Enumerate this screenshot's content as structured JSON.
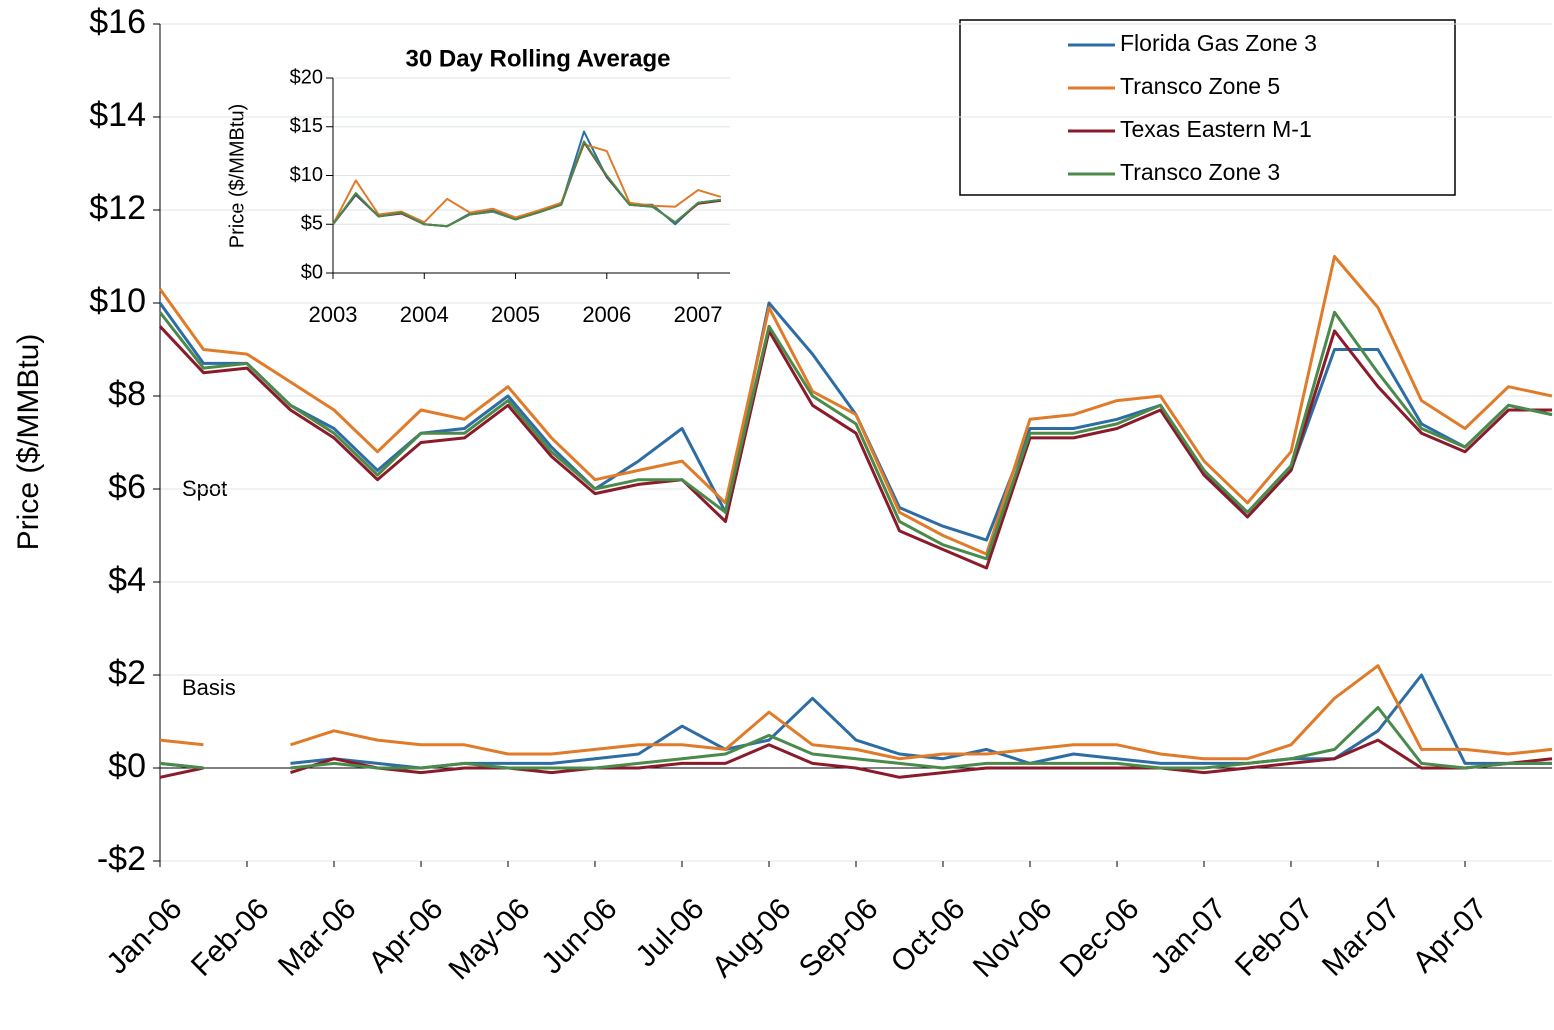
{
  "chart_data": [
    {
      "type": "line",
      "y_label": "Price ($/MMBtu)",
      "annotations": [
        "Spot",
        "Basis"
      ],
      "x": [
        0,
        0.5,
        1,
        1.5,
        2,
        2.5,
        3,
        3.5,
        4,
        4.5,
        5,
        5.5,
        6,
        6.5,
        7,
        7.5,
        8,
        8.5,
        9,
        9.5,
        10,
        10.5,
        11,
        11.5,
        12,
        12.5,
        13,
        13.5,
        14,
        14.5,
        15,
        15.5,
        16
      ],
      "xlim": [
        0,
        16
      ],
      "xticks": [
        {
          "value": 0,
          "label": "Jan-06"
        },
        {
          "value": 1,
          "label": "Feb-06"
        },
        {
          "value": 2,
          "label": "Mar-06"
        },
        {
          "value": 3,
          "label": "Apr-06"
        },
        {
          "value": 4,
          "label": "May-06"
        },
        {
          "value": 5,
          "label": "Jun-06"
        },
        {
          "value": 6,
          "label": "Jul-06"
        },
        {
          "value": 7,
          "label": "Aug-06"
        },
        {
          "value": 8,
          "label": "Sep-06"
        },
        {
          "value": 9,
          "label": "Oct-06"
        },
        {
          "value": 10,
          "label": "Nov-06"
        },
        {
          "value": 11,
          "label": "Dec-06"
        },
        {
          "value": 12,
          "label": "Jan-07"
        },
        {
          "value": 13,
          "label": "Feb-07"
        },
        {
          "value": 14,
          "label": "Mar-07"
        },
        {
          "value": 15,
          "label": "Apr-07"
        }
      ],
      "ylim": [
        -2,
        16
      ],
      "yticks": [
        {
          "value": -2,
          "label": "-$2"
        },
        {
          "value": 0,
          "label": "$0"
        },
        {
          "value": 2,
          "label": "$2"
        },
        {
          "value": 4,
          "label": "$4"
        },
        {
          "value": 6,
          "label": "$6"
        },
        {
          "value": 8,
          "label": "$8"
        },
        {
          "value": 10,
          "label": "$10"
        },
        {
          "value": 12,
          "label": "$12"
        },
        {
          "value": 14,
          "label": "$14"
        },
        {
          "value": 16,
          "label": "$16"
        }
      ],
      "grid": true,
      "legend": "top-right",
      "series": [
        {
          "name": "Florida Gas Zone 3",
          "color": "#2e6da4",
          "values": [
            10.0,
            8.7,
            8.7,
            7.8,
            7.3,
            6.4,
            7.2,
            7.3,
            8.0,
            6.9,
            6.0,
            6.6,
            7.3,
            5.5,
            10.0,
            8.9,
            7.6,
            5.6,
            5.2,
            4.9,
            7.3,
            7.3,
            7.5,
            7.8,
            6.4,
            5.4,
            6.4,
            9.0,
            9.0,
            7.4,
            6.9,
            7.8,
            7.6
          ],
          "basis": [
            0.1,
            0.0,
            null,
            0.1,
            0.2,
            0.1,
            0.0,
            0.1,
            0.1,
            0.1,
            0.2,
            0.3,
            0.9,
            0.4,
            0.6,
            1.5,
            0.6,
            0.3,
            0.2,
            0.4,
            0.1,
            0.3,
            0.2,
            0.1,
            0.1,
            0.1,
            0.2,
            0.2,
            0.8,
            2.0,
            0.1,
            0.1,
            0.1
          ]
        },
        {
          "name": "Transco Zone 5",
          "color": "#e07b2a",
          "values": [
            10.3,
            9.0,
            8.9,
            8.3,
            7.7,
            6.8,
            7.7,
            7.5,
            8.2,
            7.1,
            6.2,
            6.4,
            6.6,
            5.7,
            9.9,
            8.1,
            7.6,
            5.5,
            5.0,
            4.6,
            7.5,
            7.6,
            7.9,
            8.0,
            6.6,
            5.7,
            6.8,
            11.0,
            9.9,
            7.9,
            7.3,
            8.2,
            8.0
          ],
          "basis": [
            0.6,
            0.5,
            null,
            0.5,
            0.8,
            0.6,
            0.5,
            0.5,
            0.3,
            0.3,
            0.4,
            0.5,
            0.5,
            0.4,
            1.2,
            0.5,
            0.4,
            0.2,
            0.3,
            0.3,
            0.4,
            0.5,
            0.5,
            0.3,
            0.2,
            0.2,
            0.5,
            1.5,
            2.2,
            0.4,
            0.4,
            0.3,
            0.4
          ]
        },
        {
          "name": "Texas Eastern M-1",
          "color": "#8b1a2b",
          "values": [
            9.5,
            8.5,
            8.6,
            7.7,
            7.1,
            6.2,
            7.0,
            7.1,
            7.8,
            6.7,
            5.9,
            6.1,
            6.2,
            5.3,
            9.4,
            7.8,
            7.2,
            5.1,
            4.7,
            4.3,
            7.1,
            7.1,
            7.3,
            7.7,
            6.3,
            5.4,
            6.4,
            9.4,
            8.2,
            7.2,
            6.8,
            7.7,
            7.7
          ],
          "basis": [
            -0.2,
            0.0,
            null,
            -0.1,
            0.2,
            0.0,
            -0.1,
            0.0,
            0.0,
            -0.1,
            0.0,
            0.0,
            0.1,
            0.1,
            0.5,
            0.1,
            0.0,
            -0.2,
            -0.1,
            0.0,
            0.0,
            0.0,
            0.0,
            0.0,
            -0.1,
            0.0,
            0.1,
            0.2,
            0.6,
            0.0,
            0.0,
            0.1,
            0.2
          ]
        },
        {
          "name": "Transco Zone 3",
          "color": "#4a8a4a",
          "values": [
            9.8,
            8.6,
            8.7,
            7.8,
            7.2,
            6.3,
            7.2,
            7.2,
            7.9,
            6.8,
            6.0,
            6.2,
            6.2,
            5.5,
            9.5,
            8.0,
            7.4,
            5.3,
            4.8,
            4.5,
            7.2,
            7.2,
            7.4,
            7.8,
            6.4,
            5.5,
            6.5,
            9.8,
            8.5,
            7.3,
            6.9,
            7.8,
            7.6
          ],
          "basis": [
            0.1,
            0.0,
            null,
            0.0,
            0.1,
            0.0,
            0.0,
            0.1,
            0.0,
            0.0,
            0.0,
            0.1,
            0.2,
            0.3,
            0.7,
            0.3,
            0.2,
            0.1,
            0.0,
            0.1,
            0.1,
            0.1,
            0.1,
            0.0,
            0.0,
            0.1,
            0.2,
            0.4,
            1.3,
            0.1,
            0.0,
            0.1,
            0.1
          ]
        }
      ]
    },
    {
      "type": "line",
      "title": "30 Day Rolling Average",
      "y_label": "Price ($/MMBtu)",
      "x": [
        2003,
        2003.25,
        2003.5,
        2003.75,
        2004,
        2004.25,
        2004.5,
        2004.75,
        2005,
        2005.25,
        2005.5,
        2005.75,
        2006,
        2006.25,
        2006.5,
        2006.75,
        2007,
        2007.25
      ],
      "xlim": [
        2003,
        2007.35
      ],
      "xticks": [
        2003,
        2004,
        2005,
        2006,
        2007
      ],
      "ylim": [
        0,
        20
      ],
      "yticks": [
        {
          "value": 0,
          "label": "$0"
        },
        {
          "value": 5,
          "label": "$5"
        },
        {
          "value": 10,
          "label": "$10"
        },
        {
          "value": 15,
          "label": "$15"
        },
        {
          "value": 20,
          "label": "$20"
        }
      ],
      "grid": true,
      "series": [
        {
          "color": "#2e6da4",
          "values": [
            5,
            8,
            5.8,
            6.2,
            5,
            4.8,
            6.1,
            6.4,
            5.5,
            6.3,
            7,
            14.5,
            9.8,
            7,
            7,
            5,
            7.2,
            7.5
          ]
        },
        {
          "color": "#e07b2a",
          "values": [
            5,
            9.5,
            6,
            6.3,
            5.2,
            7.6,
            6.2,
            6.6,
            5.7,
            6.4,
            7.2,
            13.2,
            12.5,
            7.2,
            6.9,
            6.8,
            8.5,
            7.8
          ]
        },
        {
          "color": "#8b1a2b",
          "values": [
            5,
            8.1,
            5.8,
            6.1,
            5,
            4.8,
            6,
            6.3,
            5.5,
            6.2,
            7,
            13.4,
            9.9,
            7,
            6.8,
            5.2,
            7.1,
            7.4
          ]
        },
        {
          "color": "#4a8a4a",
          "values": [
            5,
            8.2,
            5.8,
            6.2,
            5,
            4.8,
            6,
            6.3,
            5.5,
            6.2,
            7,
            13.5,
            10,
            7,
            6.8,
            5.2,
            7.2,
            7.5
          ]
        }
      ]
    }
  ]
}
